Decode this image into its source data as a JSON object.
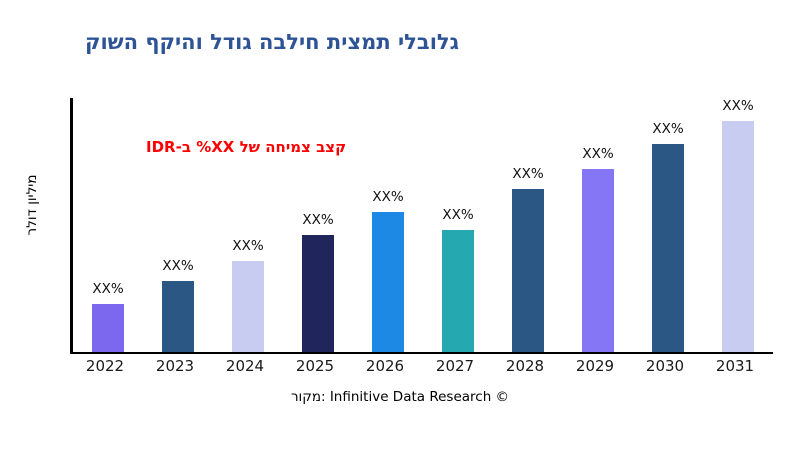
{
  "page": {
    "background": "#FFFFFF"
  },
  "title": {
    "text": "גלובלי תמצית חילבה גודל והיקף השוק",
    "color": "#2E5496"
  },
  "annotation": {
    "text": "קצב צמיחה של XX% ב-IDR",
    "color": "#FF0000"
  },
  "y_axis_label": "מיליון דולר",
  "footer": {
    "text": "מקור: Infinitive Data Research ©"
  },
  "chart_data": {
    "type": "bar",
    "title": "גלובלי תמצית חילבה גודל והיקף השוק",
    "categories": [
      "2022",
      "2023",
      "2024",
      "2025",
      "2026",
      "2027",
      "2028",
      "2029",
      "2030",
      "2031"
    ],
    "values": [
      19,
      28,
      36,
      46,
      55,
      48,
      64,
      72,
      82,
      91
    ],
    "bar_labels": [
      "XX%",
      "XX%",
      "XX%",
      "XX%",
      "XX%",
      "XX%",
      "XX%",
      "XX%",
      "XX%",
      "XX%"
    ],
    "bar_colors": [
      "#7B68EE",
      "#2A5783",
      "#C7CCF0",
      "#20265B",
      "#1E88E5",
      "#25A8B0",
      "#2A5783",
      "#8476F4",
      "#2A5783",
      "#C7CCF0"
    ],
    "xlabel": "",
    "ylabel": "מיליון דולר",
    "ylim": [
      0,
      100
    ],
    "grid": false,
    "legend": false
  }
}
